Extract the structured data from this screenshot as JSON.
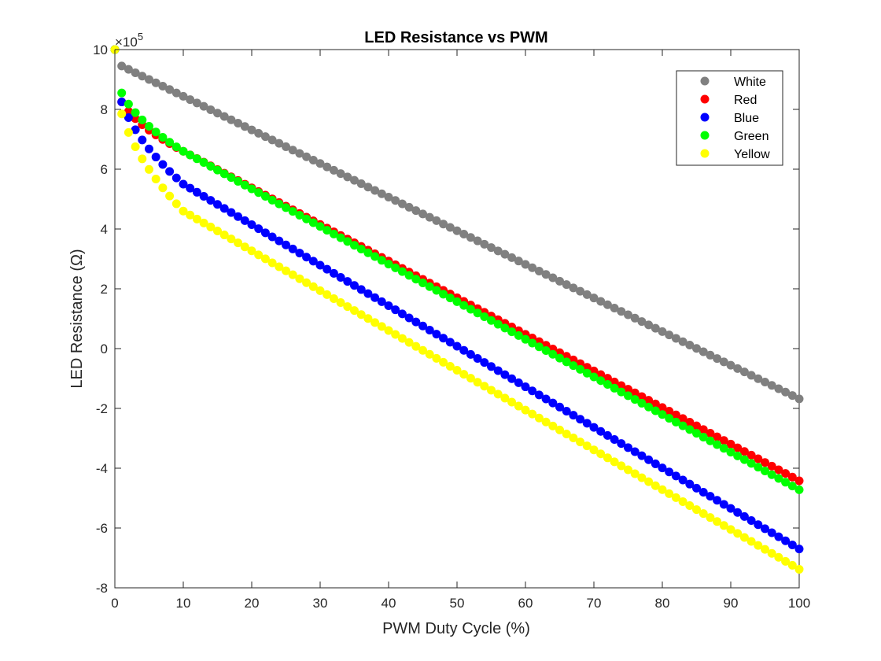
{
  "chart_data": {
    "type": "scatter",
    "title": "LED Resistance vs PWM",
    "xlabel": "PWM Duty Cycle (%)",
    "ylabel": "LED Resistance (Ω)",
    "xlim": [
      0,
      100
    ],
    "ylim": [
      -8,
      10
    ],
    "y_exponent_base": "×10",
    "y_exponent_power": "5",
    "xticks": [
      "0",
      "10",
      "20",
      "30",
      "40",
      "50",
      "60",
      "70",
      "80",
      "90",
      "100"
    ],
    "yticks": [
      "-8",
      "-6",
      "-4",
      "-2",
      "0",
      "2",
      "4",
      "6",
      "8",
      "10"
    ],
    "grid": false,
    "legend_position": "top-right",
    "series": [
      {
        "name": "White",
        "color": "#808080",
        "shape": "linear",
        "start": 10.0,
        "at1": 9.45,
        "end": -1.68
      },
      {
        "name": "Red",
        "color": "#ff0000",
        "shape": "concave",
        "start": 10.0,
        "at1": 8.25,
        "knee_x": 10,
        "knee_y": 6.6,
        "end": -4.42
      },
      {
        "name": "Blue",
        "color": "#0000ff",
        "shape": "concave",
        "start": 10.0,
        "at1": 8.25,
        "knee_x": 10,
        "knee_y": 5.5,
        "end": -6.7
      },
      {
        "name": "Green",
        "color": "#00ff00",
        "shape": "concave",
        "start": 10.0,
        "at1": 8.55,
        "knee_x": 10,
        "knee_y": 6.6,
        "end": -4.72
      },
      {
        "name": "Yellow",
        "color": "#ffff00",
        "shape": "concave",
        "start": 10.0,
        "at1": 7.85,
        "knee_x": 10,
        "knee_y": 4.6,
        "end": -7.38
      }
    ]
  }
}
